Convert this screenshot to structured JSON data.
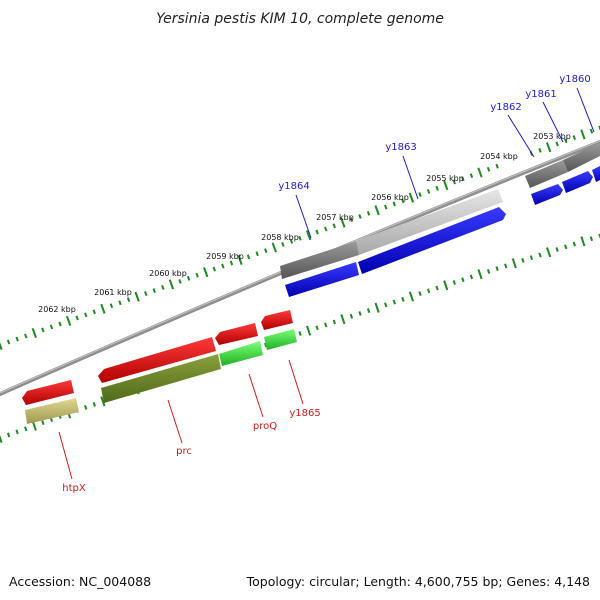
{
  "title": "Yersinia pestis KIM 10, complete genome",
  "footer": {
    "accession": "Accession: NC_004088",
    "summary": "Topology: circular; Length: 4,600,755 bp; Genes: 4,148"
  },
  "colors": {
    "backbone": "#8a8a8a",
    "tick": "#1f8a1f",
    "forward_cds": "#1a1ae6",
    "reverse_cds": "#e61a1a",
    "forward_gene": "#707070",
    "reverse_gene": "#6f8a2e",
    "forward_gene_light": "#c8c8c8",
    "reverse_gene_light": "#3fd93f",
    "reverse_gene_khaki": "#b8b070",
    "label_blue": "#1a1ad6",
    "label_red": "#d61a1a"
  },
  "ticks": [
    {
      "label": "2053 kbp"
    },
    {
      "label": "2054 kbp"
    },
    {
      "label": "2055 kbp"
    },
    {
      "label": "2056 kbp"
    },
    {
      "label": "2057 kbp"
    },
    {
      "label": "2058 kbp"
    },
    {
      "label": "2059 kbp"
    },
    {
      "label": "2060 kbp"
    },
    {
      "label": "2061 kbp"
    },
    {
      "label": "2062 kbp"
    }
  ],
  "forward_labels": [
    {
      "label": "y1860"
    },
    {
      "label": "y1861"
    },
    {
      "label": "y1862"
    },
    {
      "label": "y1863"
    },
    {
      "label": "y1864"
    }
  ],
  "reverse_labels": [
    {
      "label": "htpX"
    },
    {
      "label": "prc"
    },
    {
      "label": "proQ"
    },
    {
      "label": "y1865"
    }
  ]
}
